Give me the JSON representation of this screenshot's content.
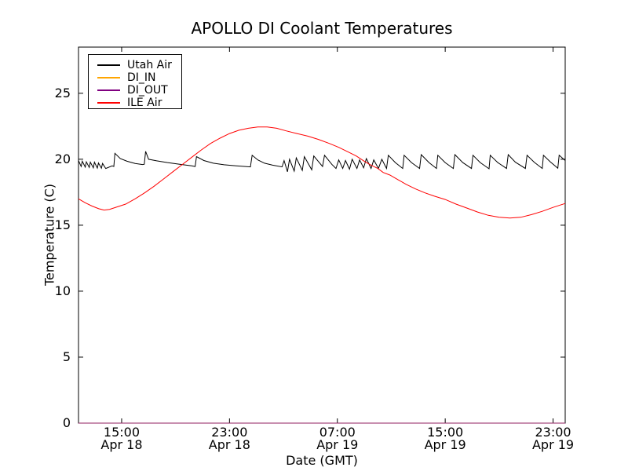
{
  "figure": {
    "background": "#ffffff",
    "plot_border_color": "#000000"
  },
  "chart_data": {
    "type": "line",
    "title": "APOLLO DI Coolant Temperatures",
    "xlabel": "Date (GMT)",
    "ylabel": "Temperature (C)",
    "grid": false,
    "legend_position": "upper left",
    "x_unit_note": "hours since Apr 18 00:00 GMT",
    "xlim": [
      11.8,
      47.9
    ],
    "ylim": [
      0,
      28.5
    ],
    "y_ticks": [
      0,
      5,
      10,
      15,
      20,
      25
    ],
    "x_ticks": [
      {
        "t": 15,
        "time": "15:00",
        "date": "Apr 18"
      },
      {
        "t": 23,
        "time": "23:00",
        "date": "Apr 18"
      },
      {
        "t": 31,
        "time": "07:00",
        "date": "Apr 19"
      },
      {
        "t": 39,
        "time": "15:00",
        "date": "Apr 19"
      },
      {
        "t": 47,
        "time": "23:00",
        "date": "Apr 19"
      }
    ],
    "series": [
      {
        "name": "Utah Air",
        "color": "#000000",
        "opacity": 1,
        "points": [
          [
            11.8,
            19.9
          ],
          [
            11.95,
            19.55
          ],
          [
            12.0,
            19.45
          ],
          [
            12.08,
            19.85
          ],
          [
            12.3,
            19.4
          ],
          [
            12.38,
            19.8
          ],
          [
            12.6,
            19.38
          ],
          [
            12.68,
            19.78
          ],
          [
            12.9,
            19.35
          ],
          [
            12.98,
            19.78
          ],
          [
            13.2,
            19.33
          ],
          [
            13.28,
            19.72
          ],
          [
            13.5,
            19.32
          ],
          [
            13.58,
            19.68
          ],
          [
            13.82,
            19.3
          ],
          [
            14.3,
            19.5
          ],
          [
            14.42,
            19.45
          ],
          [
            14.5,
            20.45
          ],
          [
            14.9,
            20.05
          ],
          [
            15.4,
            19.85
          ],
          [
            16.0,
            19.68
          ],
          [
            16.55,
            19.6
          ],
          [
            16.68,
            19.62
          ],
          [
            16.78,
            20.6
          ],
          [
            17.0,
            20.0
          ],
          [
            17.6,
            19.88
          ],
          [
            18.4,
            19.75
          ],
          [
            19.3,
            19.62
          ],
          [
            20.2,
            19.5
          ],
          [
            20.45,
            19.45
          ],
          [
            20.55,
            20.2
          ],
          [
            21.1,
            19.9
          ],
          [
            21.8,
            19.7
          ],
          [
            22.6,
            19.58
          ],
          [
            23.5,
            19.5
          ],
          [
            24.55,
            19.42
          ],
          [
            24.68,
            20.3
          ],
          [
            25.1,
            19.95
          ],
          [
            25.6,
            19.7
          ],
          [
            26.2,
            19.55
          ],
          [
            26.9,
            19.42
          ],
          [
            27.05,
            19.9
          ],
          [
            27.3,
            19.05
          ],
          [
            27.45,
            20.0
          ],
          [
            27.8,
            19.1
          ],
          [
            27.95,
            20.1
          ],
          [
            28.4,
            19.15
          ],
          [
            28.55,
            20.2
          ],
          [
            29.1,
            19.2
          ],
          [
            29.25,
            20.25
          ],
          [
            29.9,
            19.45
          ],
          [
            30.05,
            20.3
          ],
          [
            30.6,
            19.6
          ],
          [
            30.9,
            19.3
          ],
          [
            31.1,
            19.95
          ],
          [
            31.4,
            19.3
          ],
          [
            31.6,
            19.9
          ],
          [
            31.9,
            19.25
          ],
          [
            32.1,
            20.0
          ],
          [
            32.45,
            19.3
          ],
          [
            32.65,
            19.95
          ],
          [
            32.95,
            19.35
          ],
          [
            33.15,
            20.05
          ],
          [
            33.5,
            19.3
          ],
          [
            33.7,
            19.95
          ],
          [
            34.05,
            19.3
          ],
          [
            34.3,
            20.0
          ],
          [
            34.65,
            19.3
          ],
          [
            34.78,
            20.3
          ],
          [
            35.3,
            19.75
          ],
          [
            35.85,
            19.3
          ],
          [
            35.95,
            20.3
          ],
          [
            36.5,
            19.75
          ],
          [
            37.1,
            19.3
          ],
          [
            37.22,
            20.35
          ],
          [
            37.8,
            19.75
          ],
          [
            38.35,
            19.3
          ],
          [
            38.45,
            20.3
          ],
          [
            39.0,
            19.75
          ],
          [
            39.6,
            19.3
          ],
          [
            39.72,
            20.35
          ],
          [
            40.3,
            19.75
          ],
          [
            40.95,
            19.3
          ],
          [
            41.06,
            20.3
          ],
          [
            41.6,
            19.75
          ],
          [
            42.25,
            19.28
          ],
          [
            42.34,
            20.3
          ],
          [
            42.9,
            19.75
          ],
          [
            43.55,
            19.3
          ],
          [
            43.67,
            20.35
          ],
          [
            44.2,
            19.78
          ],
          [
            44.95,
            19.3
          ],
          [
            45.07,
            20.3
          ],
          [
            45.6,
            19.78
          ],
          [
            46.2,
            19.3
          ],
          [
            46.29,
            20.3
          ],
          [
            46.8,
            19.8
          ],
          [
            47.35,
            19.32
          ],
          [
            47.45,
            20.3
          ],
          [
            47.9,
            19.9
          ]
        ]
      },
      {
        "name": "DI_IN",
        "color": "#ffa500",
        "opacity": 0.75,
        "points": [
          [
            11.8,
            0
          ],
          [
            47.9,
            0
          ]
        ]
      },
      {
        "name": "DI_OUT",
        "color": "#800080",
        "opacity": 0.75,
        "points": [
          [
            11.8,
            0
          ],
          [
            47.9,
            0
          ]
        ]
      },
      {
        "name": "ILE Air",
        "color": "#ff0000",
        "opacity": 1,
        "points": [
          [
            11.8,
            17.0
          ],
          [
            12.3,
            16.7
          ],
          [
            12.8,
            16.45
          ],
          [
            13.3,
            16.25
          ],
          [
            13.7,
            16.15
          ],
          [
            14.1,
            16.2
          ],
          [
            14.7,
            16.4
          ],
          [
            15.3,
            16.6
          ],
          [
            16.0,
            17.0
          ],
          [
            16.7,
            17.45
          ],
          [
            17.4,
            17.95
          ],
          [
            18.1,
            18.5
          ],
          [
            18.8,
            19.05
          ],
          [
            19.5,
            19.6
          ],
          [
            20.2,
            20.15
          ],
          [
            20.9,
            20.7
          ],
          [
            21.6,
            21.2
          ],
          [
            22.3,
            21.6
          ],
          [
            23.0,
            21.95
          ],
          [
            23.7,
            22.2
          ],
          [
            24.4,
            22.35
          ],
          [
            25.1,
            22.45
          ],
          [
            25.8,
            22.45
          ],
          [
            26.5,
            22.35
          ],
          [
            27.2,
            22.15
          ],
          [
            28.0,
            21.95
          ],
          [
            28.8,
            21.75
          ],
          [
            29.6,
            21.5
          ],
          [
            30.4,
            21.2
          ],
          [
            31.1,
            20.9
          ],
          [
            31.8,
            20.55
          ],
          [
            32.4,
            20.25
          ],
          [
            33.0,
            19.85
          ],
          [
            33.5,
            19.55
          ],
          [
            34.0,
            19.3
          ],
          [
            34.4,
            19.0
          ],
          [
            34.9,
            18.8
          ],
          [
            35.5,
            18.45
          ],
          [
            36.1,
            18.1
          ],
          [
            36.8,
            17.75
          ],
          [
            37.5,
            17.45
          ],
          [
            38.2,
            17.2
          ],
          [
            39.0,
            16.95
          ],
          [
            39.8,
            16.6
          ],
          [
            40.6,
            16.3
          ],
          [
            41.4,
            16.0
          ],
          [
            42.2,
            15.75
          ],
          [
            43.0,
            15.6
          ],
          [
            43.8,
            15.55
          ],
          [
            44.6,
            15.6
          ],
          [
            45.4,
            15.8
          ],
          [
            46.2,
            16.05
          ],
          [
            47.0,
            16.35
          ],
          [
            47.9,
            16.65
          ]
        ]
      }
    ]
  }
}
